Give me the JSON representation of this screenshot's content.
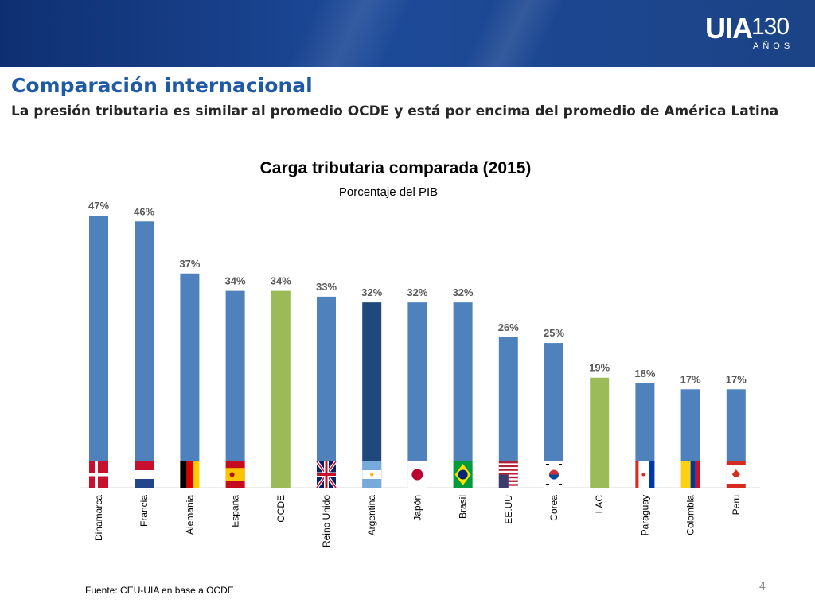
{
  "header": {
    "logo_text": "UIA",
    "logo_number": "130",
    "logo_subtext": "AÑOS"
  },
  "slide": {
    "title": "Comparación internacional",
    "subtitle": "La presión tributaria es similar al promedio OCDE y está por encima del promedio de América Latina",
    "source": "Fuente: CEU-UIA en base a OCDE",
    "page_number": "4"
  },
  "colors": {
    "banner": "#1b4386",
    "title": "#1f5aa6",
    "bar_default": "#4f81bd",
    "bar_average": "#9bbb59",
    "bar_highlight": "#1f497d",
    "value_label": "#595959"
  },
  "chart_data": {
    "type": "bar",
    "title": "Carga tributaria comparada (2015)",
    "subtitle": "Porcentaje del PIB",
    "categories": [
      "Dinamarca",
      "Francia",
      "Alemania",
      "España",
      "OCDE",
      "Reino Unido",
      "Argentina",
      "Japón",
      "Brasil",
      "EE.UU",
      "Corea",
      "LAC",
      "Paraguay",
      "Colombia",
      "Peru"
    ],
    "values": [
      47,
      46,
      37,
      34,
      34,
      33,
      32,
      32,
      32,
      26,
      25,
      19,
      18,
      17,
      17
    ],
    "value_labels": [
      "47%",
      "46%",
      "37%",
      "34%",
      "34%",
      "33%",
      "32%",
      "32%",
      "32%",
      "26%",
      "25%",
      "19%",
      "18%",
      "17%",
      "17%"
    ],
    "bar_kinds": [
      "default",
      "default",
      "default",
      "default",
      "average",
      "default",
      "highlight",
      "default",
      "default",
      "default",
      "default",
      "average",
      "default",
      "default",
      "default"
    ],
    "flags": [
      "denmark",
      "netherlands",
      "germany",
      "spain",
      "",
      "uk",
      "argentina",
      "japan",
      "brazil",
      "usa",
      "korea",
      "",
      "paraguay",
      "colombia",
      "canada"
    ],
    "xlabel": "",
    "ylabel": "",
    "ylim": [
      0,
      47
    ],
    "grid": false,
    "legend": "none"
  }
}
